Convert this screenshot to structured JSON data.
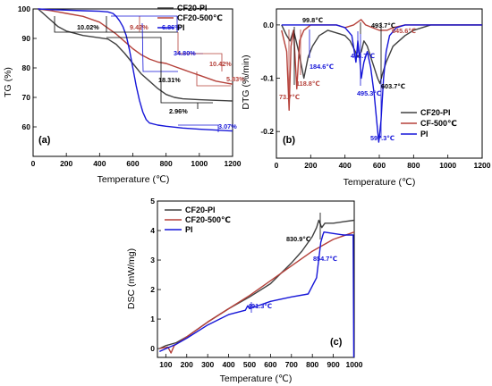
{
  "chart_data": [
    {
      "id": "a",
      "type": "line",
      "panel_label": "(a)",
      "xlabel": "Temperature (℃)",
      "ylabel": "TG (%)",
      "xlim": [
        0,
        1200
      ],
      "ylim": [
        50,
        100
      ],
      "xticks": [
        0,
        200,
        400,
        600,
        800,
        1000,
        1200
      ],
      "yticks": [
        60,
        70,
        80,
        90,
        100
      ],
      "legend_position": "top-right",
      "series": [
        {
          "name": "CF20-PI",
          "color": "#404040",
          "x": [
            30,
            100,
            150,
            200,
            300,
            400,
            450,
            500,
            550,
            600,
            650,
            700,
            750,
            800,
            850,
            900,
            1000,
            1100,
            1200
          ],
          "y": [
            100,
            96.5,
            94,
            92.5,
            91,
            90.2,
            89.8,
            88,
            85,
            81.5,
            78,
            75.5,
            73,
            71,
            70,
            69.5,
            69.2,
            69,
            68.8
          ]
        },
        {
          "name": "CF20-500℃",
          "color": "#b5413a",
          "x": [
            30,
            100,
            150,
            200,
            300,
            400,
            450,
            500,
            550,
            600,
            650,
            700,
            750,
            800,
            850,
            900,
            950,
            1000,
            1100,
            1200
          ],
          "y": [
            100,
            99.5,
            99,
            98.5,
            97.5,
            95.5,
            93.5,
            91.5,
            89,
            86.5,
            84.5,
            83,
            82,
            81.5,
            80.5,
            79.5,
            78.5,
            77.5,
            75.5,
            74.5
          ]
        },
        {
          "name": "PI",
          "color": "#1515d8",
          "x": [
            30,
            100,
            200,
            300,
            400,
            450,
            480,
            500,
            520,
            540,
            560,
            580,
            600,
            620,
            640,
            660,
            680,
            700,
            750,
            800,
            900,
            1000,
            1100,
            1200
          ],
          "y": [
            100,
            99.8,
            99.6,
            99.4,
            99.2,
            99,
            98.5,
            97.5,
            96,
            94,
            91,
            86,
            80,
            74,
            69,
            65,
            62.5,
            61.3,
            60.6,
            60.2,
            59.6,
            59.2,
            58.9,
            58.6
          ]
        }
      ],
      "annotations": [
        {
          "text": "10.02%",
          "color": "#000000"
        },
        {
          "text": "9.42%",
          "color": "#b5413a"
        },
        {
          "text": "6.86%",
          "color": "#1515d8"
        },
        {
          "text": "34.80%",
          "color": "#1515d8"
        },
        {
          "text": "10.42%",
          "color": "#b5413a"
        },
        {
          "text": "5.83%",
          "color": "#b5413a"
        },
        {
          "text": "18.31%",
          "color": "#000000"
        },
        {
          "text": "2.96%",
          "color": "#000000"
        },
        {
          "text": "3.07%",
          "color": "#1515d8"
        }
      ]
    },
    {
      "id": "b",
      "type": "line",
      "panel_label": "(b)",
      "xlabel": "Temperature (℃)",
      "ylabel": "DTG (%/min)",
      "xlim": [
        0,
        1200
      ],
      "ylim": [
        -0.25,
        0.03
      ],
      "xticks": [
        0,
        200,
        400,
        600,
        800,
        1000,
        1200
      ],
      "yticks": [
        -0.2,
        -0.1,
        0.0
      ],
      "ytick_labels": [
        "-0.2",
        "-0.1",
        "0.0"
      ],
      "legend_position": "bottom-center",
      "series": [
        {
          "name": "CF20-PI",
          "color": "#404040",
          "x": [
            30,
            60,
            80,
            100,
            130,
            160,
            185,
            210,
            250,
            300,
            350,
            400,
            430,
            460,
            475,
            495,
            510,
            530,
            550,
            570,
            590,
            604,
            620,
            640,
            680,
            750,
            800,
            900,
            1000,
            1100,
            1200
          ],
          "y": [
            0,
            -0.02,
            -0.03,
            -0.01,
            -0.05,
            -0.1,
            -0.06,
            -0.04,
            -0.02,
            -0.01,
            -0.015,
            -0.02,
            -0.03,
            -0.05,
            -0.06,
            -0.05,
            -0.03,
            -0.04,
            -0.06,
            -0.08,
            -0.1,
            -0.11,
            -0.09,
            -0.07,
            -0.04,
            -0.02,
            -0.01,
            0,
            0,
            0,
            0
          ]
        },
        {
          "name": "CF-500℃",
          "color": "#b5413a",
          "x": [
            30,
            60,
            74,
            85,
            100,
            119,
            135,
            160,
            200,
            250,
            300,
            350,
            400,
            450,
            494,
            520,
            560,
            600,
            646,
            680,
            750,
            800,
            900,
            1000,
            1100,
            1200
          ],
          "y": [
            -0.01,
            -0.05,
            -0.16,
            -0.04,
            -0.01,
            -0.12,
            -0.03,
            -0.01,
            0,
            0,
            0,
            0,
            -0.005,
            0,
            0.01,
            0,
            -0.005,
            -0.01,
            -0.01,
            -0.005,
            0,
            0,
            0,
            0,
            0,
            0
          ]
        },
        {
          "name": "PI",
          "color": "#1515d8",
          "x": [
            30,
            100,
            150,
            200,
            250,
            300,
            350,
            400,
            440,
            464,
            475,
            485,
            495,
            510,
            530,
            550,
            570,
            585,
            597,
            610,
            625,
            640,
            660,
            700,
            750,
            800,
            900,
            1000,
            1100,
            1200
          ],
          "y": [
            0,
            0,
            0,
            0,
            0,
            0,
            0,
            -0.005,
            -0.02,
            -0.07,
            -0.03,
            -0.06,
            -0.1,
            -0.07,
            -0.05,
            -0.08,
            -0.13,
            -0.18,
            -0.22,
            -0.18,
            -0.1,
            -0.05,
            -0.02,
            -0.005,
            0,
            0,
            0,
            0,
            0,
            0
          ]
        }
      ],
      "annotations": [
        {
          "text": "99.8℃",
          "color": "#000000"
        },
        {
          "text": "73.7℃",
          "color": "#b5413a"
        },
        {
          "text": "118.8℃",
          "color": "#b5413a"
        },
        {
          "text": "184.6℃",
          "color": "#1515d8"
        },
        {
          "text": "463.7℃",
          "color": "#1515d8"
        },
        {
          "text": "493.7℃",
          "color": "#000000"
        },
        {
          "text": "645.6℃",
          "color": "#b5413a"
        },
        {
          "text": "495.3℃",
          "color": "#1515d8"
        },
        {
          "text": "603.7℃",
          "color": "#000000"
        },
        {
          "text": "597.3℃",
          "color": "#1515d8"
        }
      ]
    },
    {
      "id": "c",
      "type": "line",
      "panel_label": "(c)",
      "xlabel": "Temperature (℃)",
      "ylabel": "DSC (mW/mg)",
      "xlim": [
        60,
        1000
      ],
      "ylim": [
        -0.3,
        5
      ],
      "xticks": [
        100,
        200,
        300,
        400,
        500,
        600,
        700,
        800,
        900,
        1000
      ],
      "yticks": [
        0,
        1,
        2,
        3,
        4,
        5
      ],
      "legend_position": "top-left",
      "series": [
        {
          "name": "CF20-PI",
          "color": "#404040",
          "x": [
            70,
            100,
            150,
            200,
            300,
            400,
            500,
            600,
            700,
            750,
            800,
            820,
            831,
            845,
            860,
            900,
            950,
            1000
          ],
          "y": [
            0,
            0.1,
            0.2,
            0.4,
            0.9,
            1.35,
            1.75,
            2.2,
            2.9,
            3.3,
            3.8,
            4.1,
            4.35,
            4.1,
            4.25,
            4.25,
            4.3,
            4.35
          ]
        },
        {
          "name": "CF20-500℃",
          "color": "#b5413a",
          "x": [
            70,
            110,
            125,
            140,
            200,
            300,
            400,
            500,
            600,
            700,
            800,
            900,
            1000
          ],
          "y": [
            0,
            0.05,
            -0.15,
            0.1,
            0.4,
            0.9,
            1.35,
            1.8,
            2.3,
            2.8,
            3.3,
            3.7,
            3.95
          ]
        },
        {
          "name": "PI",
          "color": "#1515d8",
          "x": [
            70,
            150,
            200,
            300,
            400,
            480,
            491,
            500,
            600,
            700,
            780,
            820,
            840,
            850,
            855,
            900,
            950,
            995,
            998
          ],
          "y": [
            -0.1,
            0.15,
            0.35,
            0.8,
            1.15,
            1.3,
            1.45,
            1.35,
            1.6,
            1.75,
            1.85,
            2.4,
            3.6,
            3.85,
            3.95,
            3.9,
            3.85,
            3.85,
            -0.3
          ]
        }
      ],
      "annotations": [
        {
          "text": "830.9℃",
          "color": "#000000"
        },
        {
          "text": "854.7℃",
          "color": "#1515d8"
        },
        {
          "text": "491.3℃",
          "color": "#1515d8"
        }
      ]
    }
  ]
}
